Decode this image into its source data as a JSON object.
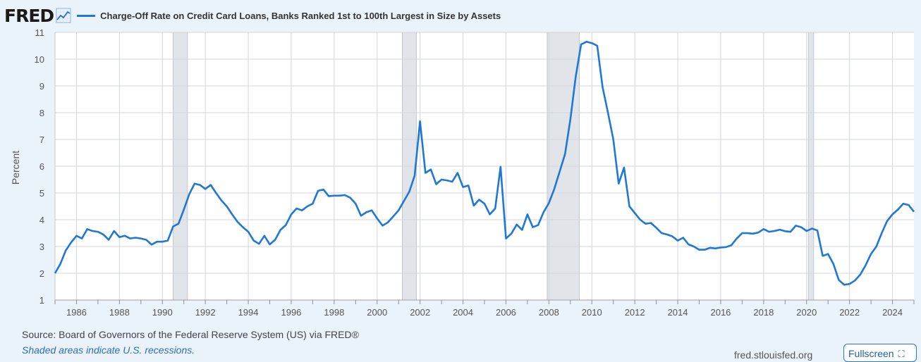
{
  "header": {
    "logo": "FRED",
    "legend_label": "Charge-Off Rate on Credit Card Loans, Banks Ranked 1st to 100th Largest in Size by Assets",
    "icon": "chart-line-icon"
  },
  "footer": {
    "source": "Source: Board of Governors of the Federal Reserve System (US) via FRED®",
    "note": "Shaded areas indicate U.S. recessions.",
    "url": "fred.stlouisfed.org",
    "fullscreen_label": "Fullscreen",
    "fullscreen_icon": "fullscreen-icon"
  },
  "colors": {
    "line": "#1f77d6",
    "recession": "#e1e5ea",
    "background": "#eaf2fa"
  },
  "chart_data": {
    "type": "line",
    "title": "Charge-Off Rate on Credit Card Loans, Banks Ranked 1st to 100th Largest in Size by Assets",
    "xlabel": "",
    "ylabel": "Percent",
    "xlim": [
      1985.0,
      2025.0
    ],
    "ylim": [
      1,
      11
    ],
    "yticks": [
      1,
      2,
      3,
      4,
      5,
      6,
      7,
      8,
      9,
      10,
      11
    ],
    "xticks": [
      1986,
      1988,
      1990,
      1992,
      1994,
      1996,
      1998,
      2000,
      2002,
      2004,
      2006,
      2008,
      2010,
      2012,
      2014,
      2016,
      2018,
      2020,
      2022,
      2024
    ],
    "grid": true,
    "recessions": [
      [
        1990.5,
        1991.17
      ],
      [
        2001.17,
        2001.83
      ],
      [
        2007.92,
        2009.42
      ],
      [
        2020.08,
        2020.33
      ]
    ],
    "series": [
      {
        "name": "Charge-Off Rate on Credit Card Loans, Banks Ranked 1st to 100th Largest in Size by Assets",
        "x": [
          1985.0,
          1985.25,
          1985.5,
          1985.75,
          1986.0,
          1986.25,
          1986.5,
          1986.75,
          1987.0,
          1987.25,
          1987.5,
          1987.75,
          1988.0,
          1988.25,
          1988.5,
          1988.75,
          1989.0,
          1989.25,
          1989.5,
          1989.75,
          1990.0,
          1990.25,
          1990.5,
          1990.75,
          1991.0,
          1991.25,
          1991.5,
          1991.75,
          1992.0,
          1992.25,
          1992.5,
          1992.75,
          1993.0,
          1993.25,
          1993.5,
          1993.75,
          1994.0,
          1994.25,
          1994.5,
          1994.75,
          1995.0,
          1995.25,
          1995.5,
          1995.75,
          1996.0,
          1996.25,
          1996.5,
          1996.75,
          1997.0,
          1997.25,
          1997.5,
          1997.75,
          1998.0,
          1998.25,
          1998.5,
          1998.75,
          1999.0,
          1999.25,
          1999.5,
          1999.75,
          2000.0,
          2000.25,
          2000.5,
          2000.75,
          2001.0,
          2001.25,
          2001.5,
          2001.75,
          2002.0,
          2002.25,
          2002.5,
          2002.75,
          2003.0,
          2003.25,
          2003.5,
          2003.75,
          2004.0,
          2004.25,
          2004.5,
          2004.75,
          2005.0,
          2005.25,
          2005.5,
          2005.75,
          2006.0,
          2006.25,
          2006.5,
          2006.75,
          2007.0,
          2007.25,
          2007.5,
          2007.75,
          2008.0,
          2008.25,
          2008.5,
          2008.75,
          2009.0,
          2009.25,
          2009.5,
          2009.75,
          2010.0,
          2010.25,
          2010.5,
          2010.75,
          2011.0,
          2011.25,
          2011.5,
          2011.75,
          2012.0,
          2012.25,
          2012.5,
          2012.75,
          2013.0,
          2013.25,
          2013.5,
          2013.75,
          2014.0,
          2014.25,
          2014.5,
          2014.75,
          2015.0,
          2015.25,
          2015.5,
          2015.75,
          2016.0,
          2016.25,
          2016.5,
          2016.75,
          2017.0,
          2017.25,
          2017.5,
          2017.75,
          2018.0,
          2018.25,
          2018.5,
          2018.75,
          2019.0,
          2019.25,
          2019.5,
          2019.75,
          2020.0,
          2020.25,
          2020.5,
          2020.75,
          2021.0,
          2021.25,
          2021.5,
          2021.75,
          2022.0,
          2022.25,
          2022.5,
          2022.75,
          2023.0,
          2023.25,
          2023.5,
          2023.75,
          2024.0,
          2024.25,
          2024.5,
          2024.75,
          2025.0
        ],
        "values": [
          2.0,
          2.35,
          2.85,
          3.15,
          3.4,
          3.3,
          3.65,
          3.58,
          3.55,
          3.45,
          3.25,
          3.58,
          3.35,
          3.4,
          3.3,
          3.33,
          3.3,
          3.25,
          3.07,
          3.18,
          3.18,
          3.22,
          3.75,
          3.85,
          4.38,
          4.95,
          5.35,
          5.3,
          5.15,
          5.3,
          5.0,
          4.72,
          4.5,
          4.2,
          3.92,
          3.72,
          3.55,
          3.22,
          3.1,
          3.4,
          3.08,
          3.25,
          3.62,
          3.8,
          4.2,
          4.42,
          4.35,
          4.5,
          4.6,
          5.08,
          5.13,
          4.88,
          4.9,
          4.9,
          4.92,
          4.82,
          4.6,
          4.15,
          4.28,
          4.35,
          4.05,
          3.78,
          3.9,
          4.12,
          4.35,
          4.7,
          5.05,
          5.65,
          7.68,
          5.75,
          5.88,
          5.33,
          5.5,
          5.47,
          5.42,
          5.75,
          5.22,
          5.28,
          4.53,
          4.75,
          4.6,
          4.2,
          4.42,
          5.98,
          3.3,
          3.48,
          3.82,
          3.62,
          4.2,
          3.72,
          3.8,
          4.28,
          4.62,
          5.15,
          5.8,
          6.45,
          7.75,
          9.35,
          10.55,
          10.65,
          10.6,
          10.5,
          8.95,
          8.0,
          7.0,
          5.35,
          5.95,
          4.5,
          4.25,
          4.0,
          3.85,
          3.88,
          3.7,
          3.5,
          3.45,
          3.38,
          3.22,
          3.33,
          3.08,
          3.0,
          2.88,
          2.88,
          2.95,
          2.93,
          2.96,
          2.98,
          3.05,
          3.3,
          3.5,
          3.5,
          3.48,
          3.52,
          3.65,
          3.55,
          3.58,
          3.63,
          3.57,
          3.55,
          3.78,
          3.72,
          3.58,
          3.67,
          3.6,
          2.65,
          2.72,
          2.35,
          1.75,
          1.57,
          1.6,
          1.73,
          1.95,
          2.3,
          2.72,
          3.0,
          3.5,
          3.95,
          4.2,
          4.38,
          4.6,
          4.55,
          4.3
        ]
      }
    ]
  }
}
